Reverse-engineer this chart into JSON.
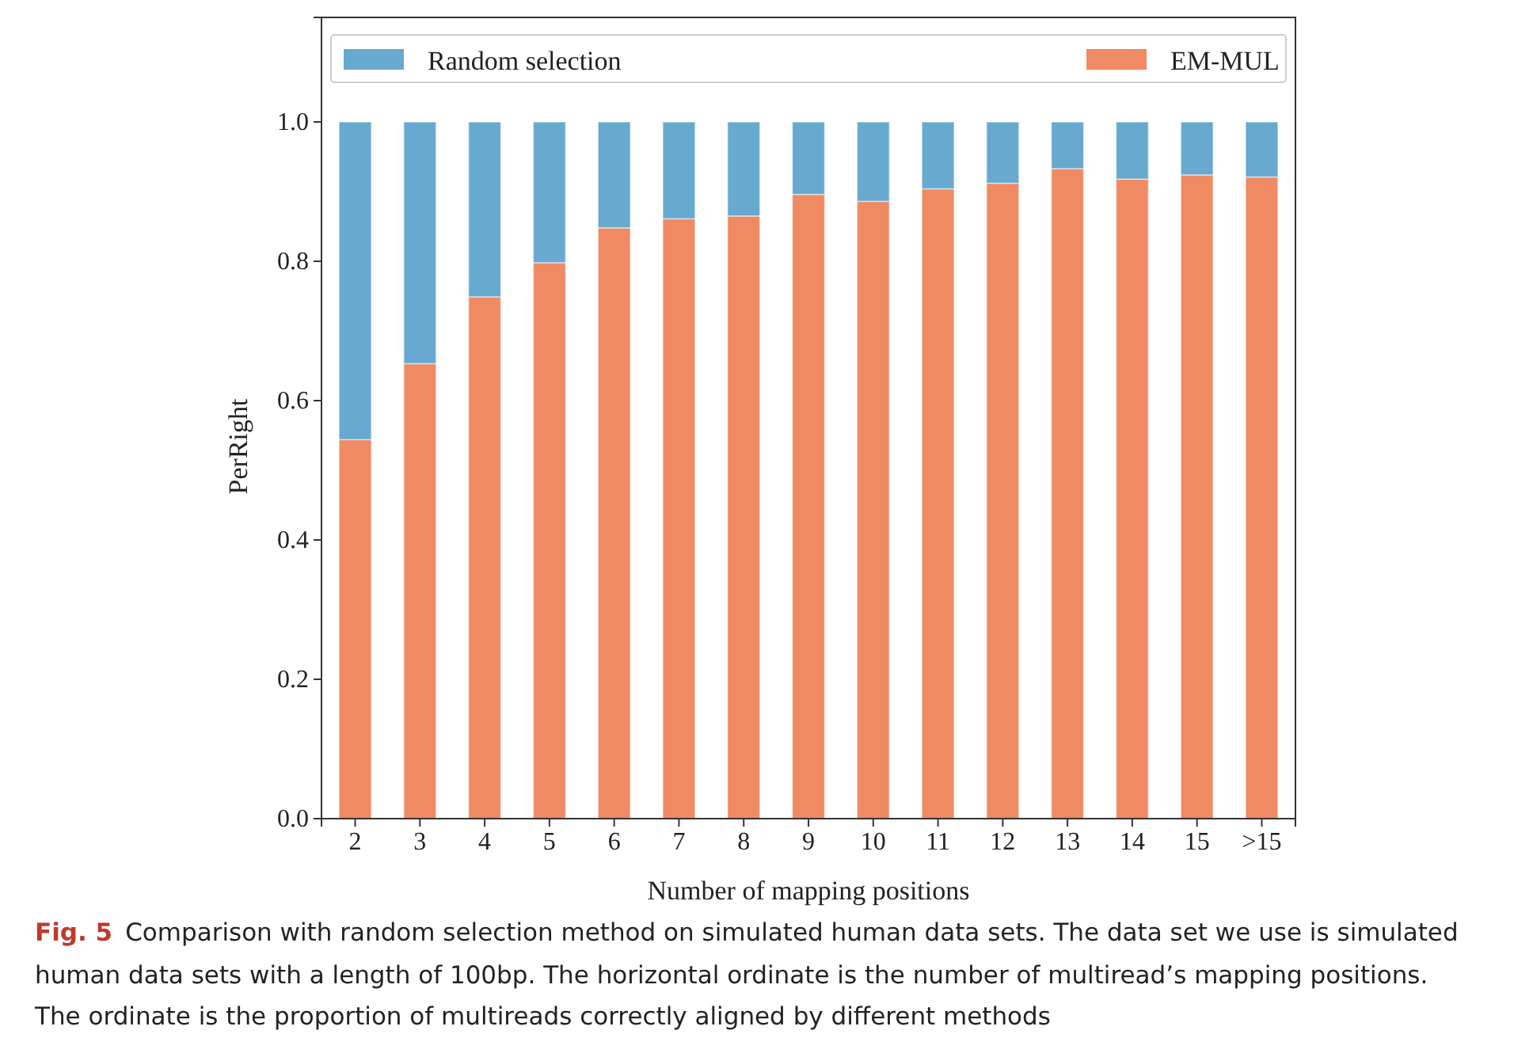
{
  "chart_data": {
    "type": "bar",
    "stacked": true,
    "xlabel": "Number of mapping positions",
    "ylabel": "PerRight",
    "categories": [
      "2",
      "3",
      "4",
      "5",
      "6",
      "7",
      "8",
      "9",
      "10",
      "11",
      "12",
      "13",
      "14",
      "15",
      ">15"
    ],
    "series": [
      {
        "name": "EM-MUL",
        "color": "#ef8a62",
        "values": [
          0.544,
          0.653,
          0.749,
          0.798,
          0.848,
          0.861,
          0.865,
          0.896,
          0.886,
          0.904,
          0.912,
          0.933,
          0.918,
          0.924,
          0.921
        ]
      },
      {
        "name": "Random selection",
        "color": "#67a9cf",
        "values": [
          0.456,
          0.347,
          0.251,
          0.202,
          0.152,
          0.139,
          0.135,
          0.104,
          0.114,
          0.096,
          0.088,
          0.067,
          0.082,
          0.076,
          0.079
        ]
      }
    ],
    "ylim": [
      0,
      1.15
    ],
    "yticks": [
      {
        "value": 0,
        "label": "0.0"
      },
      0.2,
      0.4,
      0.6,
      0.8,
      {
        "value": 1,
        "label": "1.0"
      }
    ],
    "grid": false,
    "legend": "top",
    "annotations": [
      "Fig. 5",
      "Comparison with random selection method on simulated human data sets. The data set we use is simulated human data sets with a length of 100bp. The horizontal ordinate is the number of multiread’s mapping positions. The ordinate is the proportion of multireads correctly aligned by different methods"
    ]
  }
}
